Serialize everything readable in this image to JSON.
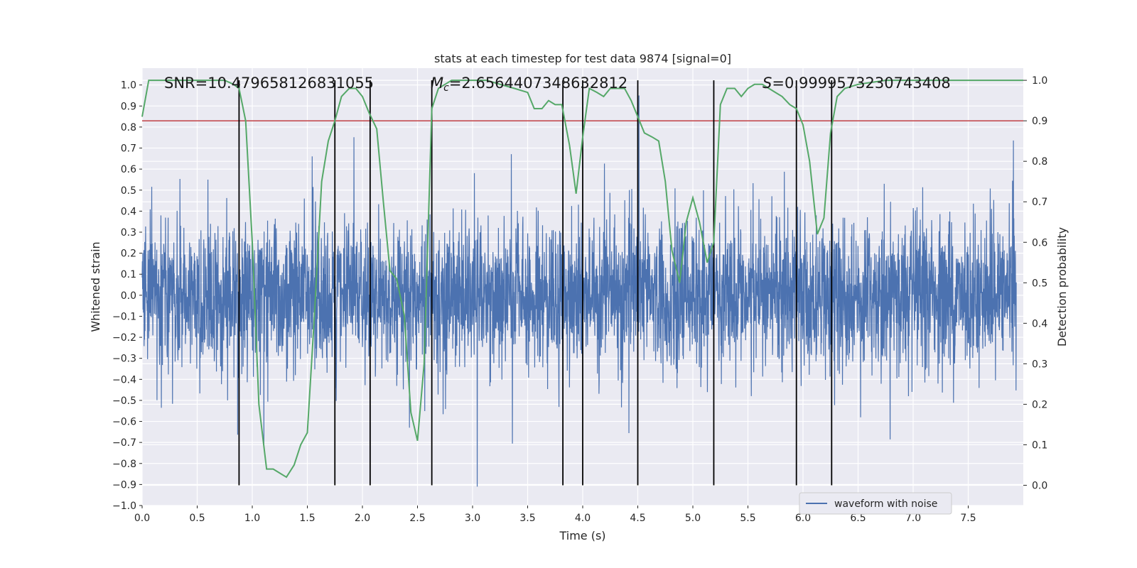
{
  "chart_data": {
    "type": "line",
    "title": "stats at each timestep for test data 9874 [signal=0]",
    "xlabel": "Time (s)",
    "ylabel": "Whitened strain",
    "y2label": "Detection probability",
    "xlim": [
      0.0,
      8.0
    ],
    "ylim": [
      -1.0,
      1.08
    ],
    "y2lim": [
      -0.05,
      1.03
    ],
    "x_ticks": [
      0.0,
      0.5,
      1.0,
      1.5,
      2.0,
      2.5,
      3.0,
      3.5,
      4.0,
      4.5,
      5.0,
      5.5,
      6.0,
      6.5,
      7.0,
      7.5
    ],
    "y_ticks": [
      -1.0,
      -0.9,
      -0.8,
      -0.7,
      -0.6,
      -0.5,
      -0.4,
      -0.3,
      -0.2,
      -0.1,
      0.0,
      0.1,
      0.2,
      0.3,
      0.4,
      0.5,
      0.6,
      0.7,
      0.8,
      0.9,
      1.0
    ],
    "y2_ticks": [
      0.0,
      0.1,
      0.2,
      0.3,
      0.4,
      0.5,
      0.6,
      0.7,
      0.8,
      0.9,
      1.0
    ],
    "grid": true,
    "legend_position": "lower-right",
    "annotations": {
      "snr": "SNR=10.479658126831055",
      "mc_symbol": "M",
      "mc_sub": "c",
      "mc_value": "=2.6564407348632812",
      "s_symbol": "S",
      "s_value": "=0.9999573230743408"
    },
    "threshold": {
      "y2": 0.9,
      "color": "#c44e52"
    },
    "vertical_lines": [
      0.88,
      1.75,
      2.07,
      2.63,
      3.82,
      4.0,
      4.5,
      5.19,
      5.94,
      6.26
    ],
    "series": [
      {
        "name": "waveform with noise",
        "axis": "left",
        "color": "#4c72b0",
        "kind": "noise",
        "sigma": 0.13,
        "max_y": 1.0,
        "min_y": -0.91
      },
      {
        "axis": "right",
        "color": "#55a868",
        "x": [
          0.0,
          0.06,
          0.13,
          0.25,
          0.5,
          0.75,
          0.83,
          0.88,
          0.94,
          1.0,
          1.06,
          1.13,
          1.19,
          1.25,
          1.31,
          1.38,
          1.44,
          1.5,
          1.56,
          1.63,
          1.69,
          1.75,
          1.81,
          1.88,
          1.94,
          2.0,
          2.06,
          2.13,
          2.19,
          2.25,
          2.31,
          2.38,
          2.44,
          2.5,
          2.56,
          2.63,
          2.69,
          2.75,
          2.81,
          2.88,
          3.0,
          3.13,
          3.25,
          3.38,
          3.5,
          3.56,
          3.63,
          3.69,
          3.75,
          3.81,
          3.88,
          3.94,
          4.0,
          4.06,
          4.13,
          4.19,
          4.25,
          4.31,
          4.38,
          4.44,
          4.5,
          4.56,
          4.63,
          4.69,
          4.75,
          4.81,
          4.88,
          4.94,
          5.0,
          5.06,
          5.13,
          5.19,
          5.25,
          5.31,
          5.38,
          5.44,
          5.5,
          5.56,
          5.63,
          5.69,
          5.75,
          5.81,
          5.88,
          5.94,
          6.0,
          6.06,
          6.13,
          6.19,
          6.25,
          6.31,
          6.38,
          6.5,
          6.75,
          7.0,
          7.25,
          7.5,
          7.75,
          8.0
        ],
        "y": [
          0.91,
          1.0,
          1.0,
          1.0,
          1.0,
          1.0,
          0.99,
          0.98,
          0.9,
          0.6,
          0.2,
          0.04,
          0.04,
          0.03,
          0.02,
          0.05,
          0.1,
          0.13,
          0.4,
          0.75,
          0.85,
          0.9,
          0.96,
          0.98,
          0.98,
          0.96,
          0.92,
          0.88,
          0.7,
          0.53,
          0.51,
          0.42,
          0.18,
          0.11,
          0.3,
          0.93,
          0.98,
          0.99,
          1.0,
          1.0,
          1.0,
          1.0,
          0.99,
          0.98,
          0.97,
          0.93,
          0.93,
          0.95,
          0.94,
          0.94,
          0.84,
          0.72,
          0.86,
          0.98,
          0.97,
          0.96,
          0.98,
          0.98,
          0.98,
          0.95,
          0.91,
          0.87,
          0.86,
          0.85,
          0.75,
          0.58,
          0.5,
          0.65,
          0.71,
          0.65,
          0.55,
          0.6,
          0.94,
          0.98,
          0.98,
          0.96,
          0.98,
          0.99,
          0.99,
          0.98,
          0.97,
          0.96,
          0.94,
          0.93,
          0.89,
          0.8,
          0.62,
          0.66,
          0.87,
          0.96,
          0.98,
          0.99,
          1.0,
          1.0,
          1.0,
          1.0,
          1.0,
          1.0
        ]
      }
    ]
  }
}
